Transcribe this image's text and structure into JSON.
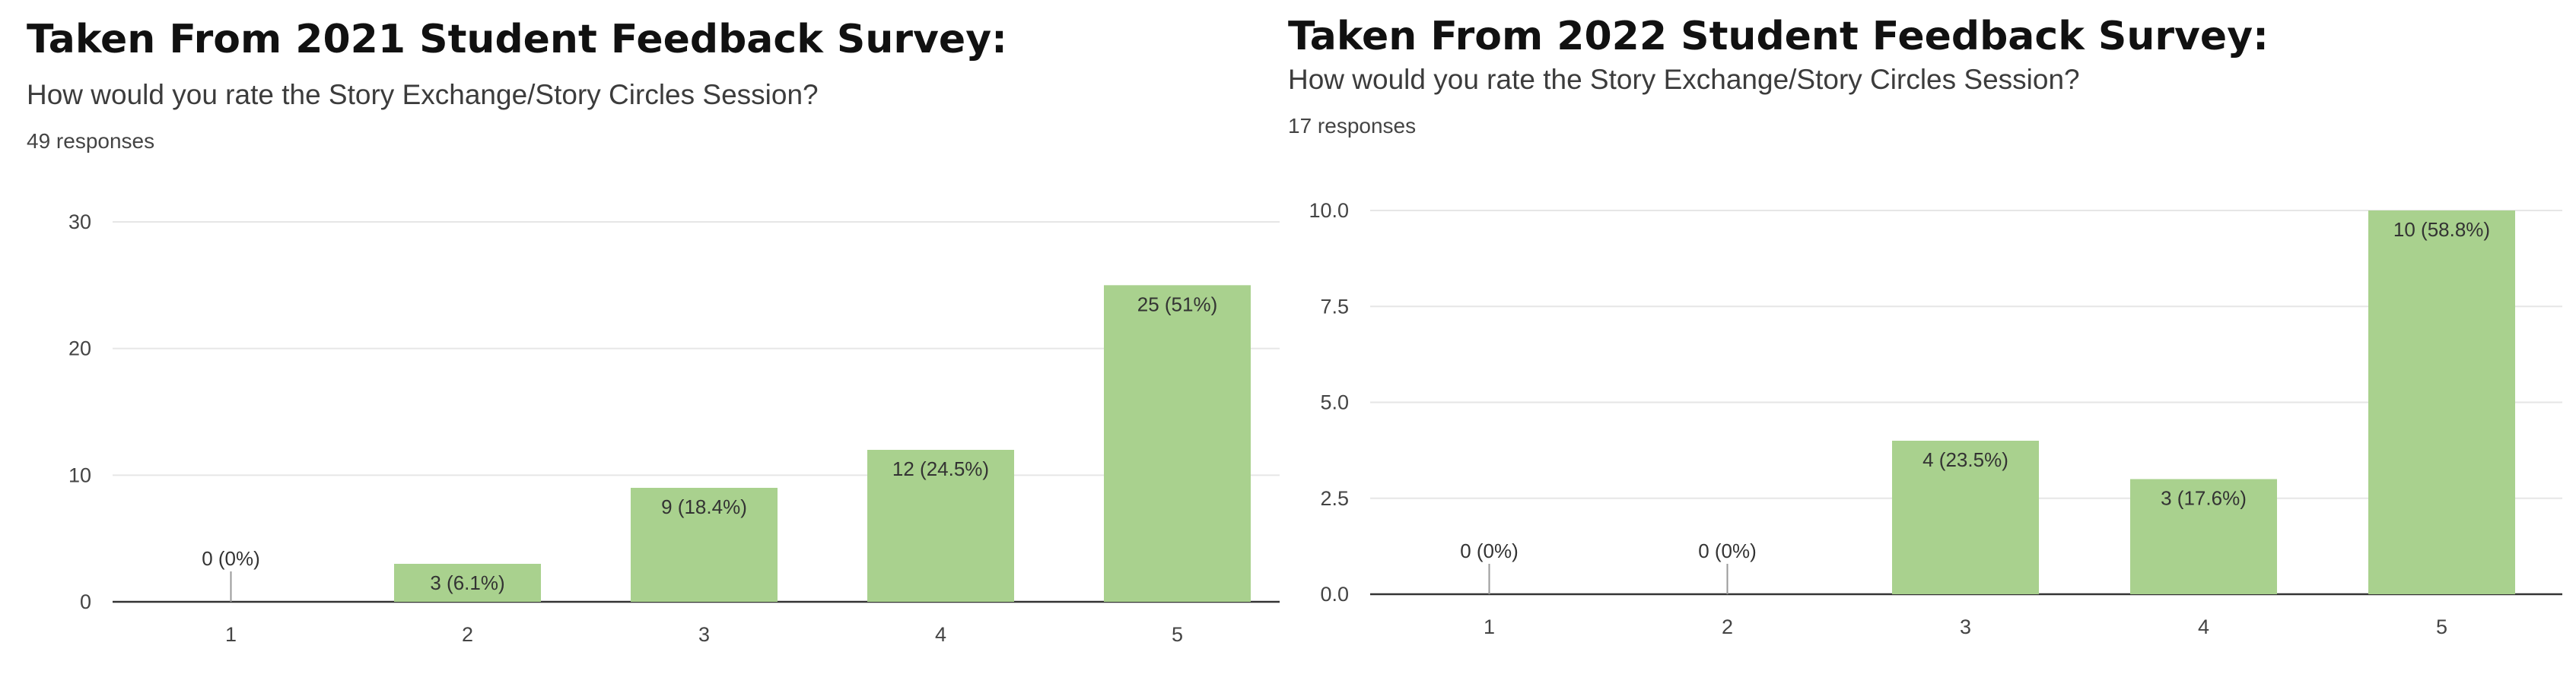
{
  "chart_data": [
    {
      "type": "bar",
      "title": "Taken From 2021 Student Feedback Survey:",
      "subtitle": "How would you rate the Story Exchange/Story Circles Session?",
      "responses": "49 responses",
      "categories": [
        "1",
        "2",
        "3",
        "4",
        "5"
      ],
      "values": [
        0,
        3,
        9,
        12,
        25
      ],
      "data_labels": [
        "0 (0%)",
        "3 (6.1%)",
        "9 (18.4%)",
        "12 (24.5%)",
        "25 (51%)"
      ],
      "yticks": [
        "0",
        "10",
        "20",
        "30"
      ],
      "ylim": [
        0,
        30
      ],
      "grid": true,
      "xlabel": "",
      "ylabel": "",
      "color": "#a9d18e"
    },
    {
      "type": "bar",
      "title": "Taken From 2022 Student Feedback Survey:",
      "subtitle": "How would you rate the Story Exchange/Story Circles Session?",
      "responses": "17 responses",
      "categories": [
        "1",
        "2",
        "3",
        "4",
        "5"
      ],
      "values": [
        0,
        0,
        4,
        3,
        10
      ],
      "data_labels": [
        "0 (0%)",
        "0 (0%)",
        "4 (23.5%)",
        "3 (17.6%)",
        "10 (58.8%)"
      ],
      "yticks": [
        "0.0",
        "2.5",
        "5.0",
        "7.5",
        "10.0"
      ],
      "ylim": [
        0,
        10
      ],
      "grid": true,
      "xlabel": "",
      "ylabel": "",
      "color": "#a9d18e"
    }
  ]
}
